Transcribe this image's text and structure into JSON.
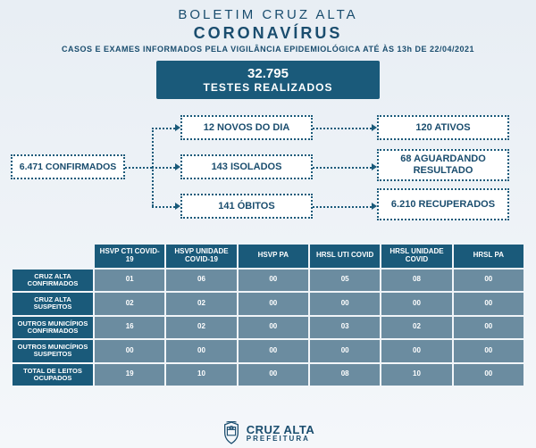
{
  "colors": {
    "page_bg_top": "#e8eef4",
    "page_bg_bottom": "#f4f7fa",
    "primary": "#1a5a7a",
    "text_primary": "#1a4d6e",
    "table_cell": "#6b8ca0",
    "white": "#ffffff"
  },
  "header": {
    "title": "BOLETIM CRUZ ALTA",
    "subtitle": "CORONAVÍRUS",
    "note": "CASOS E EXAMES INFORMADOS PELA VIGILÂNCIA EPIDEMIOLÓGICA ATÉ ÀS 13h DE 22/04/2021"
  },
  "tests": {
    "value": "32.795",
    "label": "TESTES REALIZADOS"
  },
  "flow": {
    "confirmed": "6.471 CONFIRMADOS",
    "novos": "12 NOVOS DO DIA",
    "isolados": "143 ISOLADOS",
    "obitos": "141 ÓBITOS",
    "ativos": "120 ATIVOS",
    "aguardando": "68 AGUARDANDO RESULTADO",
    "recuperados": "6.210 RECUPERADOS"
  },
  "table": {
    "columns": [
      "HSVP CTI COVID-19",
      "HSVP UNIDADE COVID-19",
      "HSVP PA",
      "HRSL UTI COVID",
      "HRSL UNIDADE COVID",
      "HRSL PA"
    ],
    "rows": [
      {
        "label": "CRUZ ALTA CONFIRMADOS",
        "cells": [
          "01",
          "06",
          "00",
          "05",
          "08",
          "00"
        ]
      },
      {
        "label": "CRUZ ALTA SUSPEITOS",
        "cells": [
          "02",
          "02",
          "00",
          "00",
          "00",
          "00"
        ]
      },
      {
        "label": "OUTROS MUNICÍPIOS CONFIRMADOS",
        "cells": [
          "16",
          "02",
          "00",
          "03",
          "02",
          "00"
        ]
      },
      {
        "label": "OUTROS MUNICÍPIOS SUSPEITOS",
        "cells": [
          "00",
          "00",
          "00",
          "00",
          "00",
          "00"
        ]
      },
      {
        "label": "TOTAL DE LEITOS OCUPADOS",
        "cells": [
          "19",
          "10",
          "00",
          "08",
          "10",
          "00"
        ]
      }
    ]
  },
  "footer": {
    "city": "CRUZ ALTA",
    "org": "PREFEITURA"
  }
}
